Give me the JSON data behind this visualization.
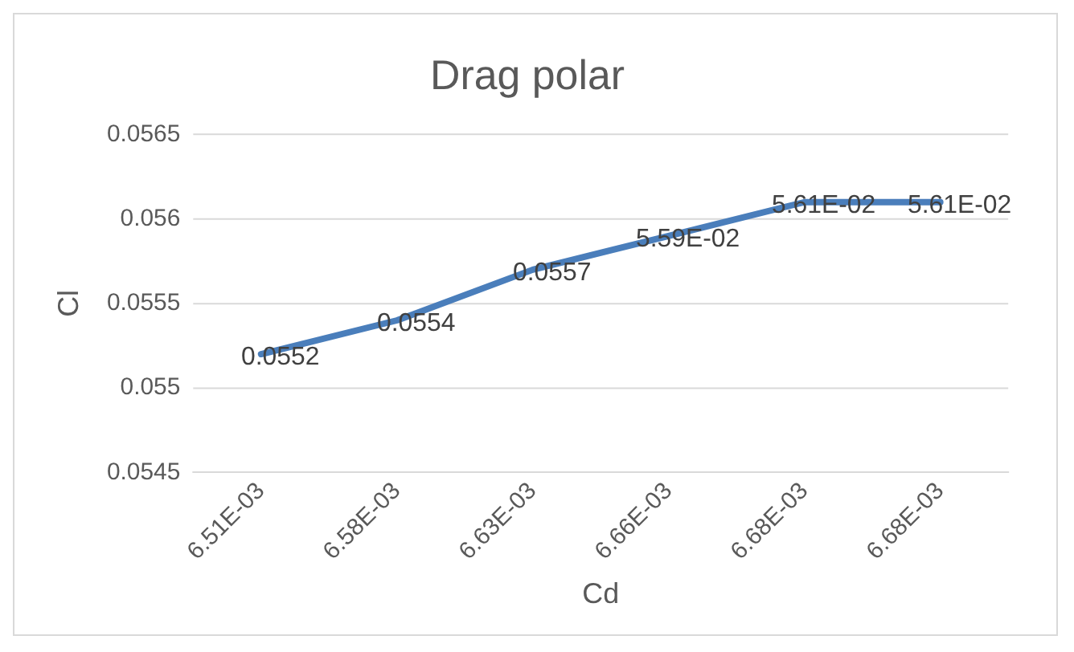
{
  "chart_data": {
    "type": "line",
    "title": "Drag polar",
    "xlabel": "Cd",
    "ylabel": "Cl",
    "categories": [
      "6.51E-03",
      "6.58E-03",
      "6.63E-03",
      "6.66E-03",
      "6.68E-03",
      "6.68E-03"
    ],
    "series": [
      {
        "color": "#4a7ebb",
        "values": [
          0.0552,
          0.0554,
          0.0557,
          0.0559,
          0.0561,
          0.0561
        ],
        "value_labels": [
          "0.0552",
          "0.0554",
          "0.0557",
          "5.59E-02",
          "5.61E-02",
          "5.61E-02"
        ]
      }
    ],
    "ylim": [
      0.0545,
      0.0565
    ],
    "yticks": [
      0.0545,
      0.055,
      0.0555,
      0.056,
      0.0565
    ],
    "grid": "y",
    "legend": false,
    "marker": "none",
    "line_style": "solid"
  }
}
